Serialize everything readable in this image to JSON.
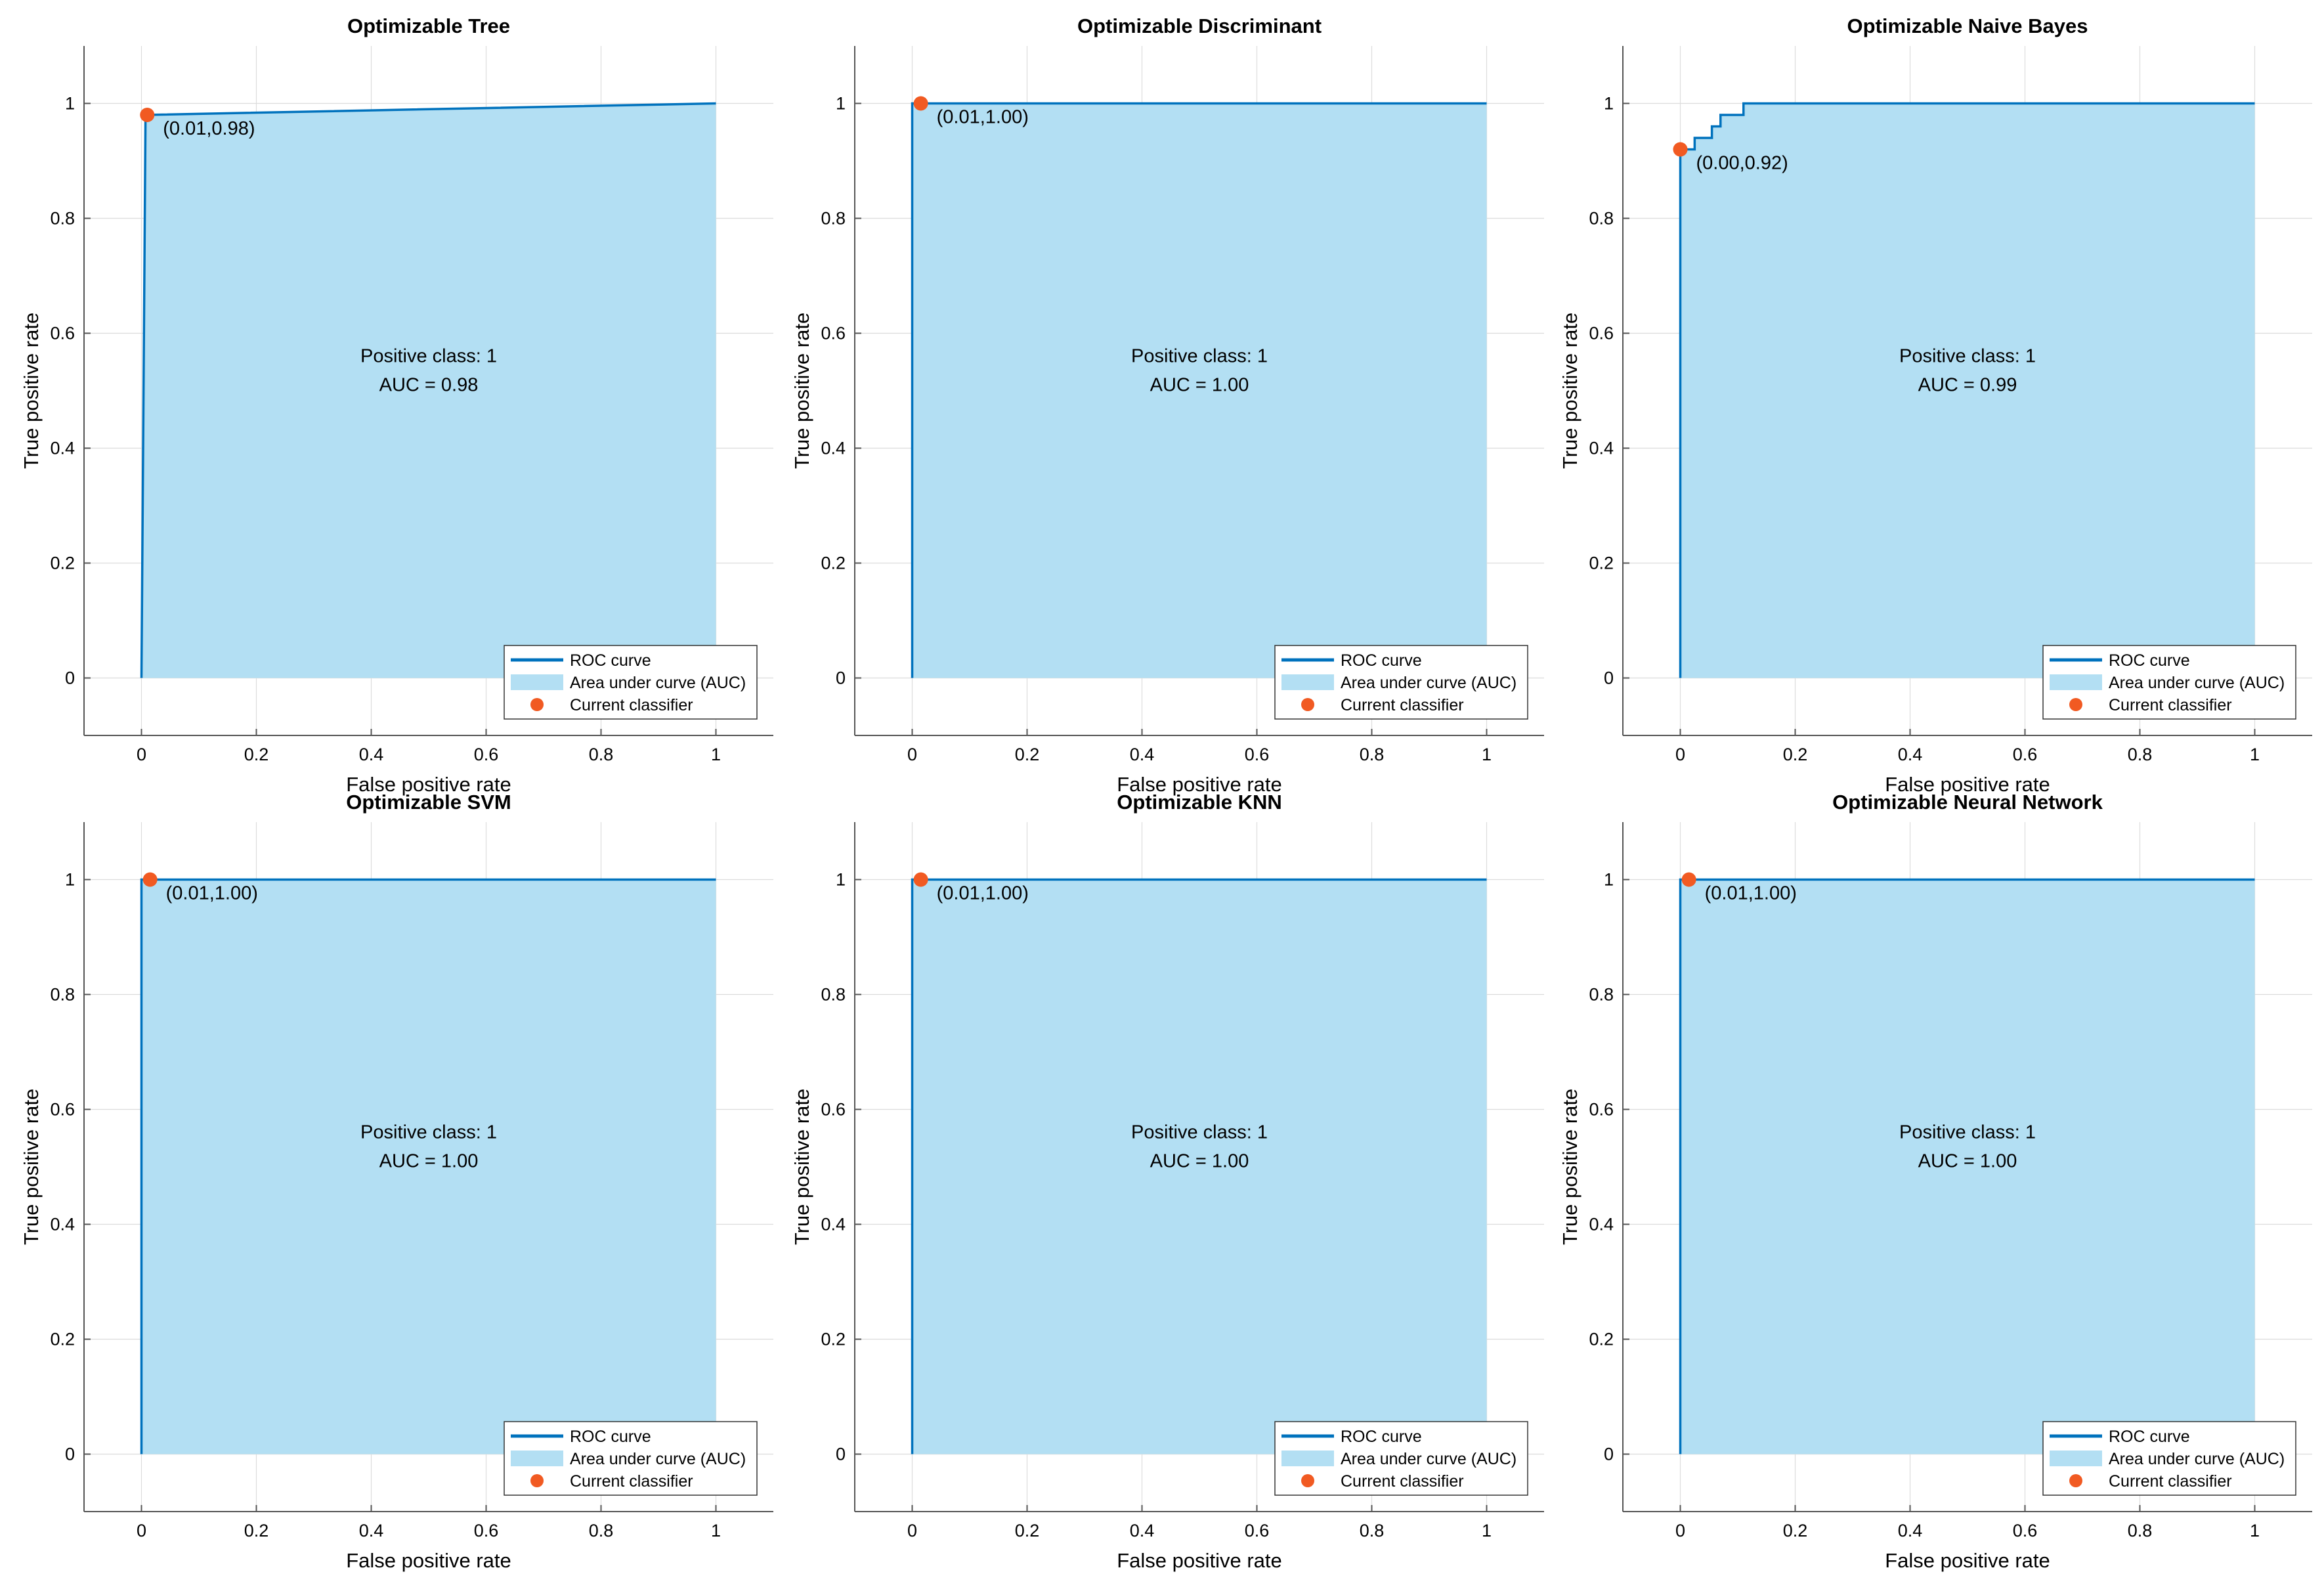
{
  "chart_data": [
    {
      "type": "line",
      "title": "Optimizable Tree",
      "xlabel": "False positive rate",
      "ylabel": "True positive rate",
      "xlim": [
        -0.1,
        1.1
      ],
      "ylim": [
        -0.1,
        1.1
      ],
      "xticks": [
        0,
        0.2,
        0.4,
        0.6,
        0.8,
        1
      ],
      "yticks": [
        0,
        0.2,
        0.4,
        0.6,
        0.8,
        1
      ],
      "xtick_labels": [
        "0",
        "0.2",
        "0.4",
        "0.6",
        "0.8",
        "1"
      ],
      "ytick_labels": [
        "0",
        "0.2",
        "0.4",
        "0.6",
        "0.8",
        "1"
      ],
      "roc_x": [
        0,
        0.007,
        0.007,
        1
      ],
      "roc_y": [
        0,
        0.97,
        0.98,
        1
      ],
      "current_classifier": {
        "x": 0.01,
        "y": 0.98,
        "label": "(0.01,0.98)"
      },
      "annotation_lines": [
        "Positive class: 1",
        "AUC = 0.98"
      ],
      "legend": [
        "ROC curve",
        "Area under curve (AUC)",
        "Current classifier"
      ],
      "legend_position": "bottom-right"
    },
    {
      "type": "line",
      "title": "Optimizable Discriminant",
      "xlabel": "False positive rate",
      "ylabel": "True positive rate",
      "xlim": [
        -0.1,
        1.1
      ],
      "ylim": [
        -0.1,
        1.1
      ],
      "xticks": [
        0,
        0.2,
        0.4,
        0.6,
        0.8,
        1
      ],
      "yticks": [
        0,
        0.2,
        0.4,
        0.6,
        0.8,
        1
      ],
      "xtick_labels": [
        "0",
        "0.2",
        "0.4",
        "0.6",
        "0.8",
        "1"
      ],
      "ytick_labels": [
        "0",
        "0.2",
        "0.4",
        "0.6",
        "0.8",
        "1"
      ],
      "roc_x": [
        0,
        0,
        1
      ],
      "roc_y": [
        0,
        1,
        1
      ],
      "current_classifier": {
        "x": 0.015,
        "y": 1.0,
        "label": "(0.01,1.00)"
      },
      "annotation_lines": [
        "Positive class: 1",
        "AUC = 1.00"
      ],
      "legend": [
        "ROC curve",
        "Area under curve (AUC)",
        "Current classifier"
      ],
      "legend_position": "bottom-right"
    },
    {
      "type": "line",
      "title": "Optimizable Naive Bayes",
      "xlabel": "False positive rate",
      "ylabel": "True positive rate",
      "xlim": [
        -0.1,
        1.1
      ],
      "ylim": [
        -0.1,
        1.1
      ],
      "xticks": [
        0,
        0.2,
        0.4,
        0.6,
        0.8,
        1
      ],
      "yticks": [
        0,
        0.2,
        0.4,
        0.6,
        0.8,
        1
      ],
      "xtick_labels": [
        "0",
        "0.2",
        "0.4",
        "0.6",
        "0.8",
        "1"
      ],
      "ytick_labels": [
        "0",
        "0.2",
        "0.4",
        "0.6",
        "0.8",
        "1"
      ],
      "roc_x": [
        0,
        0,
        0.025,
        0.025,
        0.055,
        0.055,
        0.07,
        0.07,
        0.09,
        0.09,
        0.11,
        0.11,
        1
      ],
      "roc_y": [
        0,
        0.92,
        0.92,
        0.94,
        0.94,
        0.96,
        0.96,
        0.98,
        0.98,
        0.98,
        0.98,
        1,
        1
      ],
      "current_classifier": {
        "x": 0.0,
        "y": 0.92,
        "label": "(0.00,0.92)"
      },
      "annotation_lines": [
        "Positive class: 1",
        "AUC = 0.99"
      ],
      "legend": [
        "ROC curve",
        "Area under curve (AUC)",
        "Current classifier"
      ],
      "legend_position": "bottom-right"
    },
    {
      "type": "line",
      "title": "Optimizable SVM",
      "xlabel": "False positive rate",
      "ylabel": "True positive rate",
      "xlim": [
        -0.1,
        1.1
      ],
      "ylim": [
        -0.1,
        1.1
      ],
      "xticks": [
        0,
        0.2,
        0.4,
        0.6,
        0.8,
        1
      ],
      "yticks": [
        0,
        0.2,
        0.4,
        0.6,
        0.8,
        1
      ],
      "xtick_labels": [
        "0",
        "0.2",
        "0.4",
        "0.6",
        "0.8",
        "1"
      ],
      "ytick_labels": [
        "0",
        "0.2",
        "0.4",
        "0.6",
        "0.8",
        "1"
      ],
      "roc_x": [
        0,
        0,
        1
      ],
      "roc_y": [
        0,
        1,
        1
      ],
      "current_classifier": {
        "x": 0.015,
        "y": 1.0,
        "label": "(0.01,1.00)"
      },
      "annotation_lines": [
        "Positive class: 1",
        "AUC = 1.00"
      ],
      "legend": [
        "ROC curve",
        "Area under curve (AUC)",
        "Current classifier"
      ],
      "legend_position": "bottom-right"
    },
    {
      "type": "line",
      "title": "Optimizable KNN",
      "xlabel": "False positive rate",
      "ylabel": "True positive rate",
      "xlim": [
        -0.1,
        1.1
      ],
      "ylim": [
        -0.1,
        1.1
      ],
      "xticks": [
        0,
        0.2,
        0.4,
        0.6,
        0.8,
        1
      ],
      "yticks": [
        0,
        0.2,
        0.4,
        0.6,
        0.8,
        1
      ],
      "xtick_labels": [
        "0",
        "0.2",
        "0.4",
        "0.6",
        "0.8",
        "1"
      ],
      "ytick_labels": [
        "0",
        "0.2",
        "0.4",
        "0.6",
        "0.8",
        "1"
      ],
      "roc_x": [
        0,
        0,
        1
      ],
      "roc_y": [
        0,
        1,
        1
      ],
      "current_classifier": {
        "x": 0.015,
        "y": 1.0,
        "label": "(0.01,1.00)"
      },
      "annotation_lines": [
        "Positive class: 1",
        "AUC = 1.00"
      ],
      "legend": [
        "ROC curve",
        "Area under curve (AUC)",
        "Current classifier"
      ],
      "legend_position": "bottom-right"
    },
    {
      "type": "line",
      "title": "Optimizable Neural Network",
      "xlabel": "False positive rate",
      "ylabel": "True positive rate",
      "xlim": [
        -0.1,
        1.1
      ],
      "ylim": [
        -0.1,
        1.1
      ],
      "xticks": [
        0,
        0.2,
        0.4,
        0.6,
        0.8,
        1
      ],
      "yticks": [
        0,
        0.2,
        0.4,
        0.6,
        0.8,
        1
      ],
      "xtick_labels": [
        "0",
        "0.2",
        "0.4",
        "0.6",
        "0.8",
        "1"
      ],
      "ytick_labels": [
        "0",
        "0.2",
        "0.4",
        "0.6",
        "0.8",
        "1"
      ],
      "roc_x": [
        0,
        0,
        1
      ],
      "roc_y": [
        0,
        1,
        1
      ],
      "current_classifier": {
        "x": 0.015,
        "y": 1.0,
        "label": "(0.01,1.00)"
      },
      "annotation_lines": [
        "Positive class: 1",
        "AUC = 1.00"
      ],
      "legend": [
        "ROC curve",
        "Area under curve (AUC)",
        "Current classifier"
      ],
      "legend_position": "bottom-right"
    }
  ],
  "colors": {
    "roc_line": "#0072bd",
    "auc_fill": "#b3dff3",
    "current_marker": "#f15a22",
    "axis": "#555555",
    "grid": "#dcdcdc",
    "legend_border": "#333333"
  }
}
